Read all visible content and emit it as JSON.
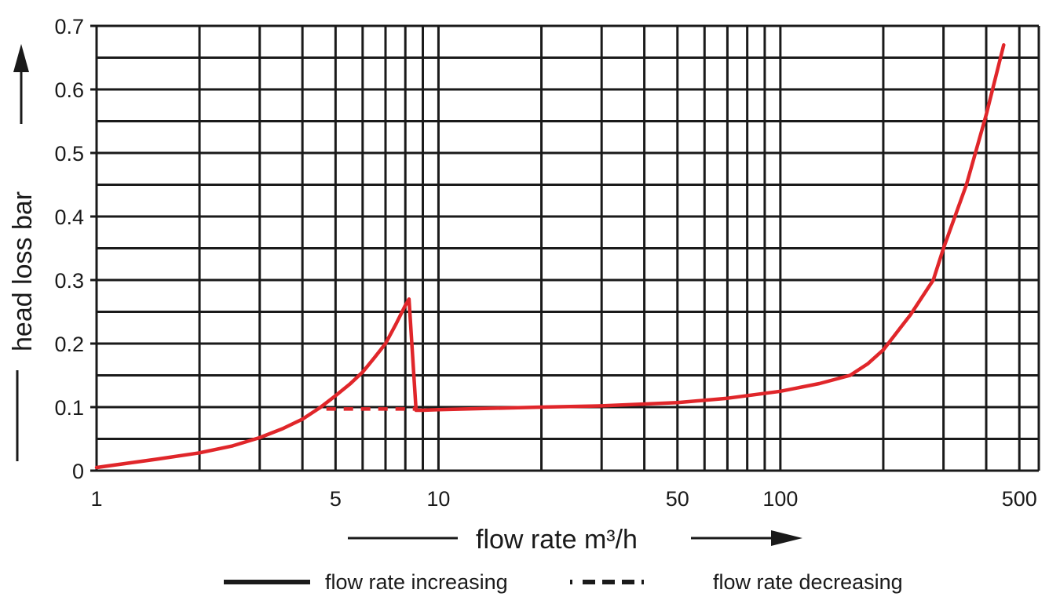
{
  "chart_data": {
    "type": "line",
    "xscale": "log",
    "xlim": [
      1,
      570
    ],
    "ylim": [
      0,
      0.7
    ],
    "grid": true,
    "xlabel": "flow rate m³/h",
    "ylabel": "head loss bar",
    "x_ticks": [
      1,
      2,
      3,
      4,
      5,
      6,
      7,
      8,
      9,
      10,
      20,
      30,
      40,
      50,
      60,
      70,
      80,
      90,
      100,
      200,
      300,
      400,
      500
    ],
    "x_tick_labels": [
      {
        "value": 1,
        "label": "1"
      },
      {
        "value": 5,
        "label": "5"
      },
      {
        "value": 10,
        "label": "10"
      },
      {
        "value": 50,
        "label": "50"
      },
      {
        "value": 100,
        "label": "100"
      },
      {
        "value": 500,
        "label": "500"
      }
    ],
    "y_ticks": [
      0,
      0.05,
      0.1,
      0.15,
      0.2,
      0.25,
      0.3,
      0.35,
      0.4,
      0.45,
      0.5,
      0.55,
      0.6,
      0.65,
      0.7
    ],
    "y_tick_labels": [
      {
        "value": 0,
        "label": "0"
      },
      {
        "value": 0.1,
        "label": "0.1"
      },
      {
        "value": 0.2,
        "label": "0.2"
      },
      {
        "value": 0.3,
        "label": "0.3"
      },
      {
        "value": 0.4,
        "label": "0.4"
      },
      {
        "value": 0.5,
        "label": "0.5"
      },
      {
        "value": 0.6,
        "label": "0.6"
      },
      {
        "value": 0.7,
        "label": "0.7"
      }
    ],
    "series": [
      {
        "name": "flow rate increasing",
        "style": "solid",
        "color": "#e0262a",
        "x": [
          1,
          1.5,
          2,
          2.5,
          3,
          3.5,
          4,
          4.5,
          5,
          5.5,
          6,
          6.5,
          7,
          7.5,
          8,
          8.2,
          8.6,
          9,
          10,
          20,
          30,
          50,
          70,
          100,
          130,
          160,
          180,
          200,
          240,
          280,
          300,
          350,
          400,
          450
        ],
        "y": [
          0.005,
          0.018,
          0.028,
          0.039,
          0.052,
          0.066,
          0.081,
          0.099,
          0.118,
          0.136,
          0.155,
          0.178,
          0.2,
          0.23,
          0.26,
          0.27,
          0.095,
          0.095,
          0.096,
          0.1,
          0.102,
          0.107,
          0.114,
          0.125,
          0.137,
          0.15,
          0.168,
          0.19,
          0.245,
          0.3,
          0.35,
          0.45,
          0.56,
          0.67
        ]
      },
      {
        "name": "flow rate decreasing",
        "style": "dashed",
        "color": "#e0262a",
        "x": [
          4.7,
          8.6
        ],
        "y": [
          0.097,
          0.097
        ]
      }
    ],
    "legend": {
      "placement": "bottom",
      "entries": [
        {
          "label": "flow rate increasing",
          "style": "solid"
        },
        {
          "label": "flow rate decreasing",
          "style": "dashed"
        }
      ]
    },
    "colors": {
      "curve": "#e0262a",
      "grid": "#1a1a1a",
      "text": "#1a1a1a"
    }
  }
}
